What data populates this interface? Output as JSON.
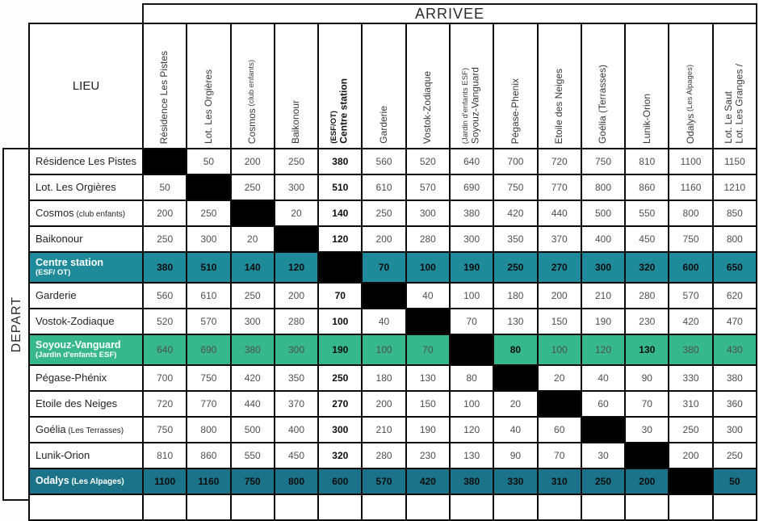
{
  "header": {
    "arrivee": "ARRIVEE",
    "depart": "DEPART",
    "lieu": "LIEU"
  },
  "colors": {
    "teal_row": "#1e8a9a",
    "teal_dark_row": "#1a7389",
    "green_row": "#36b78c",
    "diagonal_cell": "#000000",
    "grid_line": "#0a0a0a",
    "value_text": "#4f4f4f",
    "value_bold_text": "#0d0d0d",
    "colored_row_text": "#d5eef0",
    "colored_row_bold_text": "#ffffff"
  },
  "columns": [
    {
      "main": "Résidence Les Pistes"
    },
    {
      "main": "Lot. Les Orgières"
    },
    {
      "main": "Cosmos",
      "suffix_small": " (club enfants)"
    },
    {
      "main": "Baikonour"
    },
    {
      "main": "Centre station",
      "sub": "(ESF/OT)",
      "sub_small": true,
      "bold": true
    },
    {
      "main": "Garderie"
    },
    {
      "main": "Vostok-Zodiaque"
    },
    {
      "main": "Soyouz-Vanguard",
      "sub": "(Jardin d'enfants ESF)",
      "sub_small": true
    },
    {
      "main": "Pégase-Phenix"
    },
    {
      "main": "Etoile des Neiges"
    },
    {
      "main": "Goélia (Terrasses)"
    },
    {
      "main": "Lunik-Orion"
    },
    {
      "main": "Odalys",
      "suffix_small": " (Les Alpages)"
    },
    {
      "main": "Lot. Les Granges /",
      "sub": "Lot. Le Saut",
      "sub_small": false
    }
  ],
  "rows": [
    {
      "label": "Résidence Les Pistes",
      "style": "white",
      "values": [
        null,
        50,
        200,
        250,
        380,
        560,
        520,
        640,
        700,
        720,
        750,
        810,
        1100,
        1150
      ],
      "bold_indices": [
        4
      ]
    },
    {
      "label": "Lot. Les Orgières",
      "style": "white",
      "values": [
        50,
        null,
        250,
        300,
        510,
        610,
        570,
        690,
        750,
        770,
        800,
        860,
        1160,
        1210
      ],
      "bold_indices": [
        4
      ]
    },
    {
      "label": "Cosmos",
      "label_suffix_small": " (club enfants)",
      "style": "white",
      "values": [
        200,
        250,
        null,
        20,
        140,
        250,
        300,
        380,
        420,
        440,
        500,
        550,
        800,
        850
      ],
      "bold_indices": [
        4
      ]
    },
    {
      "label": "Baikonour",
      "style": "white",
      "values": [
        250,
        300,
        20,
        null,
        120,
        200,
        280,
        300,
        350,
        370,
        400,
        450,
        750,
        800
      ],
      "bold_indices": [
        4
      ]
    },
    {
      "label": "Centre station",
      "label_sub": "(ESF/ OT)",
      "style": "teal",
      "values": [
        380,
        510,
        140,
        120,
        null,
        70,
        100,
        190,
        250,
        270,
        300,
        320,
        600,
        650
      ],
      "bold_indices": [
        0,
        1,
        2,
        3,
        5,
        6,
        7,
        8,
        9,
        10,
        11,
        12,
        13
      ]
    },
    {
      "label": "Garderie",
      "style": "white",
      "values": [
        560,
        610,
        250,
        200,
        70,
        null,
        40,
        100,
        180,
        200,
        210,
        280,
        570,
        620
      ],
      "bold_indices": [
        4
      ]
    },
    {
      "label": "Vostok-Zodiaque",
      "style": "white",
      "values": [
        520,
        570,
        300,
        280,
        100,
        40,
        null,
        70,
        130,
        150,
        190,
        230,
        420,
        470
      ],
      "bold_indices": [
        4
      ]
    },
    {
      "label": "Soyouz-Vanguard",
      "label_sub": "(Jardin d'enfants ESF)",
      "style": "green",
      "values": [
        640,
        690,
        380,
        300,
        190,
        100,
        70,
        null,
        80,
        100,
        120,
        130,
        380,
        430
      ],
      "bold_indices": [
        4,
        8,
        11
      ]
    },
    {
      "label": "Pégase-Phénix",
      "style": "white",
      "values": [
        700,
        750,
        420,
        350,
        250,
        180,
        130,
        80,
        null,
        20,
        40,
        90,
        330,
        380
      ],
      "bold_indices": [
        4
      ]
    },
    {
      "label": "Etoile des Neiges",
      "style": "white",
      "values": [
        720,
        770,
        440,
        370,
        270,
        200,
        150,
        100,
        20,
        null,
        60,
        70,
        310,
        360
      ],
      "bold_indices": [
        4
      ]
    },
    {
      "label": "Goélia",
      "label_suffix_small": " (Les Terrasses)",
      "style": "white",
      "values": [
        750,
        800,
        500,
        400,
        300,
        210,
        190,
        120,
        40,
        60,
        null,
        30,
        250,
        300
      ],
      "bold_indices": [
        4
      ]
    },
    {
      "label": "Lunik-Orion",
      "style": "white",
      "values": [
        810,
        860,
        550,
        450,
        320,
        280,
        230,
        130,
        90,
        70,
        30,
        null,
        200,
        250
      ],
      "bold_indices": [
        4
      ]
    },
    {
      "label": "Odalys",
      "label_suffix_small": " (Les Alpages)",
      "style": "teal_dark",
      "values": [
        1100,
        1160,
        750,
        800,
        600,
        570,
        420,
        380,
        330,
        310,
        250,
        200,
        null,
        50
      ],
      "bold_indices": [
        0,
        1,
        2,
        3,
        4,
        5,
        6,
        7,
        8,
        9,
        10,
        11,
        13
      ]
    },
    {
      "label": "",
      "style": "partial",
      "values": [
        "",
        "",
        "",
        "",
        "",
        "",
        "",
        "",
        "",
        "",
        "",
        "",
        "",
        ""
      ],
      "bold_indices": []
    }
  ]
}
